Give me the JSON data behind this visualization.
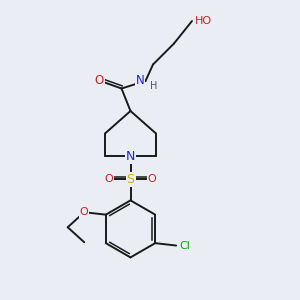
{
  "bg_color": "#eaeef4",
  "atom_colors": {
    "C": "#1a1a1a",
    "N": "#2020dd",
    "O": "#cc2020",
    "S": "#c8b400",
    "Cl": "#00aa00",
    "H": "#555555"
  },
  "bond_color": "#1a1a1a",
  "bond_lw": 1.4,
  "double_lw": 1.1,
  "font_size": 8.5
}
